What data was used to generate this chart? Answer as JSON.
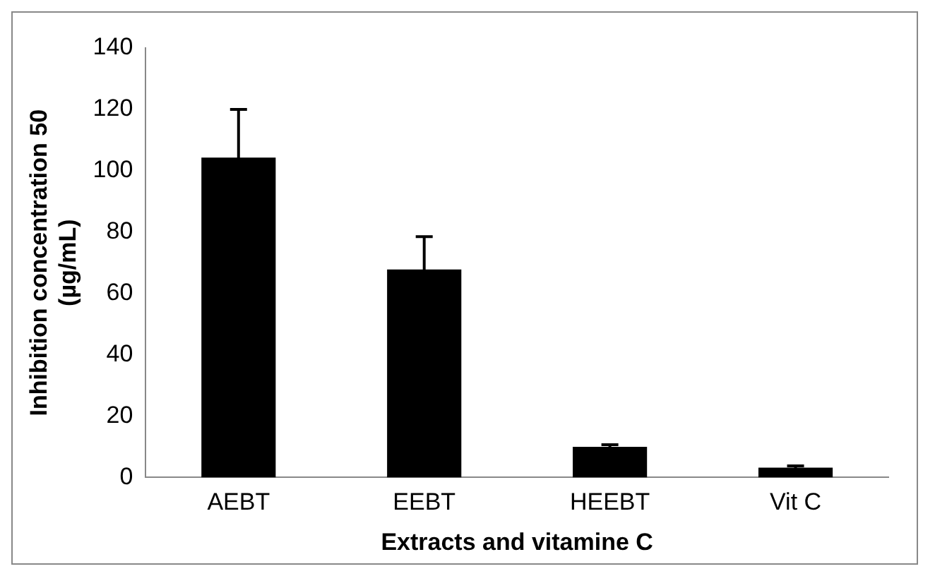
{
  "chart_data": {
    "type": "bar",
    "xlabel": "Extracts and vitamine C",
    "ylabel": "Inhibition concentration 50 (µg/mL)",
    "categories": [
      "AEBT",
      "EEBT",
      "HEEBT",
      "Vit C"
    ],
    "values": [
      104.3,
      67.8,
      10,
      3.2
    ],
    "errors": [
      15.7,
      10.7,
      0.7,
      0.6
    ],
    "color": "#000000",
    "ylim": [
      0,
      140
    ],
    "yticks": [
      0,
      20,
      40,
      60,
      80,
      100,
      120,
      140
    ],
    "grid": false,
    "legend": false
  }
}
